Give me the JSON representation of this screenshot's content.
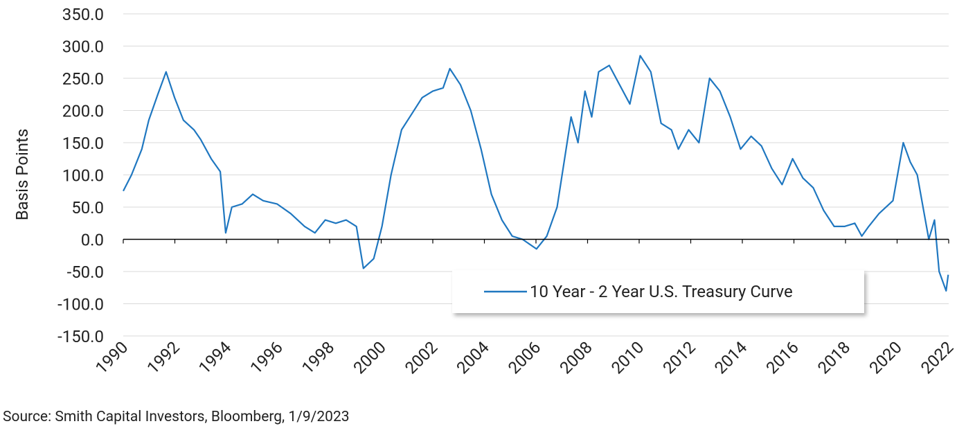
{
  "chart_data": {
    "type": "line",
    "y_label": "Basis Points",
    "source": "Source: Smith Capital Investors, Bloomberg, 1/9/2023",
    "legend_position": "lower right",
    "grid": true,
    "xlim": [
      1990,
      2022
    ],
    "xticks": [
      1990,
      1992,
      1994,
      1996,
      1998,
      2000,
      2002,
      2004,
      2006,
      2008,
      2010,
      2012,
      2014,
      2016,
      2018,
      2020,
      2022
    ],
    "ylim": [
      -150,
      350
    ],
    "yticks": [
      {
        "value": 350,
        "label": "350.0"
      },
      {
        "value": 300,
        "label": "300.0"
      },
      {
        "value": 250,
        "label": "250.0"
      },
      {
        "value": 200,
        "label": "200.0"
      },
      {
        "value": 150,
        "label": "150.0"
      },
      {
        "value": 100,
        "label": "100.0"
      },
      {
        "value": 50,
        "label": "50.0"
      },
      {
        "value": 0,
        "label": "0.0"
      },
      {
        "value": -50,
        "label": "-50.0"
      },
      {
        "value": -100,
        "label": "-100.0"
      },
      {
        "value": -150,
        "label": "-150.0"
      }
    ],
    "x": [
      1990.0,
      1990.32,
      1990.72,
      1990.99,
      1991.34,
      1991.66,
      1991.99,
      1992.33,
      1992.74,
      1993.0,
      1993.41,
      1993.76,
      1993.97,
      1994.21,
      1994.61,
      1995.02,
      1995.42,
      1995.96,
      1996.49,
      1997.03,
      1997.43,
      1997.83,
      1998.24,
      1998.64,
      1999.04,
      1999.31,
      1999.71,
      2000.03,
      2000.38,
      2000.79,
      2001.19,
      2001.59,
      2002.0,
      2002.4,
      2002.66,
      2003.07,
      2003.47,
      2003.87,
      2004.27,
      2004.68,
      2005.08,
      2005.48,
      2006.02,
      2006.42,
      2006.82,
      2007.09,
      2007.36,
      2007.63,
      2007.9,
      2008.16,
      2008.43,
      2008.84,
      2009.24,
      2009.64,
      2010.04,
      2010.45,
      2010.85,
      2011.25,
      2011.52,
      2011.92,
      2012.32,
      2012.73,
      2013.13,
      2013.53,
      2013.93,
      2014.34,
      2014.74,
      2015.14,
      2015.54,
      2015.95,
      2016.35,
      2016.75,
      2017.15,
      2017.56,
      2017.96,
      2018.36,
      2018.63,
      2018.9,
      2019.3,
      2019.84,
      2020.24,
      2020.51,
      2020.78,
      2021.05,
      2021.23,
      2021.45,
      2021.63,
      2021.9,
      2021.98
    ],
    "series": [
      {
        "name": "10 Year - 2 Year U.S. Treasury Curve",
        "color": "#1f77c0",
        "values": [
          75,
          100,
          140,
          185,
          225,
          260,
          220,
          185,
          170,
          155,
          125,
          105,
          10,
          50,
          55,
          70,
          60,
          55,
          40,
          20,
          10,
          30,
          25,
          30,
          20,
          -45,
          -30,
          20,
          100,
          170,
          195,
          220,
          230,
          235,
          265,
          240,
          200,
          140,
          70,
          30,
          5,
          0,
          -15,
          5,
          50,
          120,
          190,
          150,
          230,
          190,
          260,
          270,
          240,
          210,
          285,
          260,
          180,
          170,
          140,
          170,
          150,
          250,
          230,
          190,
          140,
          160,
          145,
          110,
          85,
          125,
          95,
          80,
          45,
          20,
          20,
          25,
          5,
          20,
          40,
          60,
          150,
          120,
          100,
          40,
          0,
          30,
          -50,
          -80,
          -55
        ]
      }
    ]
  }
}
